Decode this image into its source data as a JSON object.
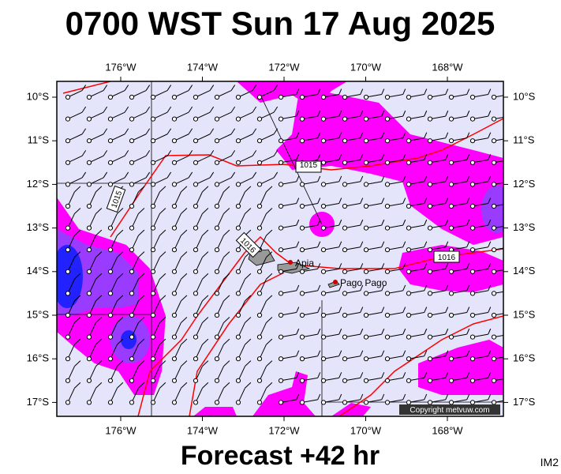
{
  "header": {
    "title": "0700 WST Sun 17 Aug 2025"
  },
  "map": {
    "longitude_labels": [
      "176°W",
      "174°W",
      "172°W",
      "170°W",
      "168°W"
    ],
    "latitude_labels": [
      "10°S",
      "11°S",
      "12°S",
      "13°S",
      "14°S",
      "15°S",
      "16°S",
      "17°S"
    ],
    "isobar_labels": [
      "1015",
      "1015",
      "1016",
      "1016"
    ],
    "places": [
      "Apia",
      "Pago Pago"
    ],
    "copyright": "Copyright metvuw.com"
  },
  "footer": {
    "forecast": "Forecast +42 hr",
    "code": "IM2"
  }
}
